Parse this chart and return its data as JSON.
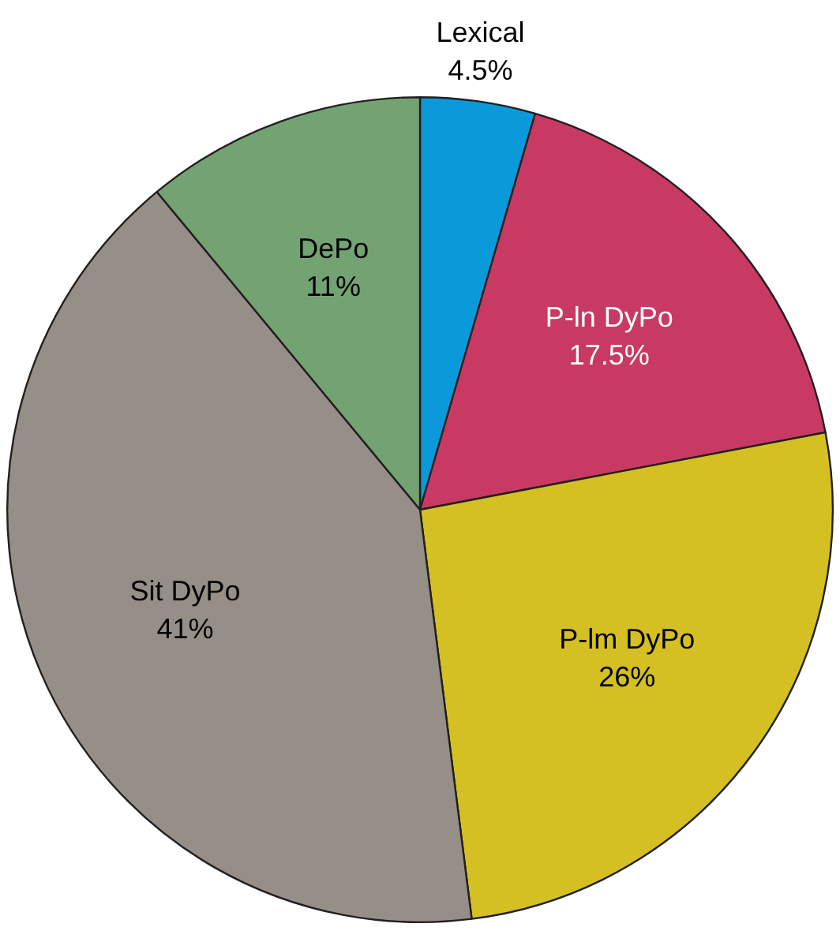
{
  "chart_data": {
    "type": "pie",
    "categories": [
      "Lexical",
      "P-ln DyPo",
      "P-lm DyPo",
      "Sit DyPo",
      "DePo"
    ],
    "values": [
      4.5,
      17.5,
      26,
      41,
      11
    ],
    "colors": [
      "#0b9ad9",
      "#c83a63",
      "#d4c023",
      "#968f87",
      "#74a373"
    ],
    "value_labels": [
      "4.5%",
      "17.5%",
      "26%",
      "41%",
      "11%"
    ],
    "legend": false
  }
}
